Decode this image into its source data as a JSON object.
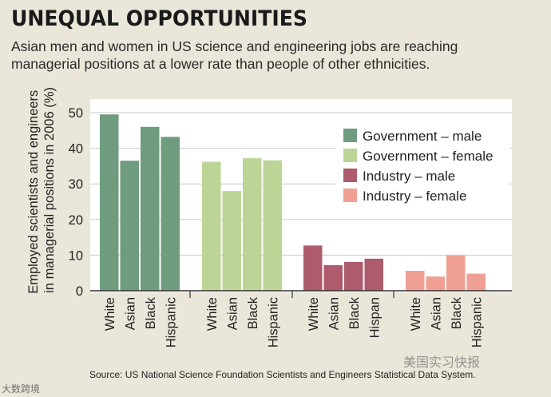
{
  "title": "UNEQUAL OPPORTUNITIES",
  "subtitle": "Asian men and women in US science and engineering jobs are reaching managerial positions at a lower rate than people of other ethnicities.",
  "source": "Source: US National Science Foundation Scientists and Engineers Statistical Data System.",
  "watermark_right": "美国实习快报",
  "watermark_left": "大数跨境",
  "chart_data": {
    "type": "bar",
    "ylabel": "Employed scientists and engineers in managerial positions in 2006 (%)",
    "ylim": [
      0,
      55
    ],
    "yticks": [
      0,
      10,
      20,
      30,
      40,
      50
    ],
    "grid": true,
    "legend_position": "top-right",
    "series": [
      {
        "name": "Government – male",
        "color": "#6f9b7f",
        "categories": [
          "White",
          "Asian",
          "Black",
          "Hispanic"
        ],
        "values": [
          49.5,
          36.5,
          46,
          43.2
        ]
      },
      {
        "name": "Government – female",
        "color": "#bcd596",
        "categories": [
          "White",
          "Asian",
          "Black",
          "Hispanic"
        ],
        "values": [
          36.2,
          28,
          37.2,
          36.6
        ]
      },
      {
        "name": "Industry – male",
        "color": "#ad5b6d",
        "categories": [
          "White",
          "Asian",
          "Black",
          "Hispan"
        ],
        "values": [
          12.7,
          7.2,
          8.1,
          9
        ]
      },
      {
        "name": "Industry – female",
        "color": "#ef9f94",
        "categories": [
          "White",
          "Asian",
          "Black",
          "Hispanic"
        ],
        "values": [
          5.6,
          4,
          9.9,
          4.8
        ]
      }
    ]
  }
}
